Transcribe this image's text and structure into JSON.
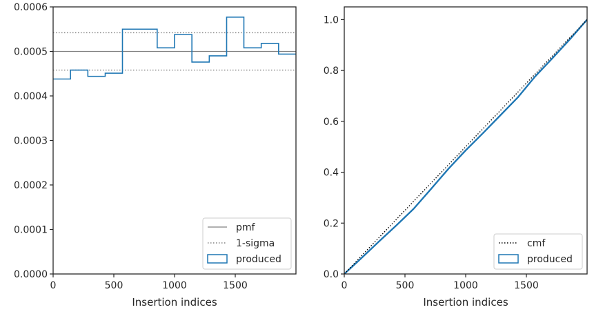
{
  "chart_data": [
    {
      "type": "line",
      "subtype": "step-histogram",
      "xlabel": "Insertion indices",
      "ylabel": "",
      "xlim": [
        0,
        2000
      ],
      "ylim": [
        0,
        0.0006
      ],
      "x_ticks": [
        0,
        500,
        1000,
        1500
      ],
      "x_tick_labels": [
        "0",
        "500",
        "1000",
        "1500"
      ],
      "y_ticks": [
        0,
        0.0001,
        0.0002,
        0.0003,
        0.0004,
        0.0005,
        0.0006
      ],
      "y_tick_labels": [
        "0.0000",
        "0.0001",
        "0.0002",
        "0.0003",
        "0.0004",
        "0.0005",
        "0.0006"
      ],
      "grid": false,
      "legend_position": "lower-right",
      "legend": [
        "pmf",
        "1-sigma",
        "produced"
      ],
      "series": [
        {
          "name": "pmf",
          "style": "solid",
          "color": "#808080",
          "y": 0.0005
        },
        {
          "name": "1-sigma",
          "style": "dotted",
          "color": "#808080",
          "y_values": [
            0.000458,
            0.000542
          ]
        },
        {
          "name": "produced",
          "style": "step",
          "color": "#1f77b4",
          "bin_edges": [
            0,
            143,
            286,
            429,
            571,
            714,
            857,
            1000,
            1143,
            1286,
            1429,
            1571,
            1714,
            1857,
            2000
          ],
          "values": [
            0.000438,
            0.000458,
            0.000444,
            0.000451,
            0.00055,
            0.00055,
            0.000508,
            0.000538,
            0.000476,
            0.00049,
            0.000577,
            0.000508,
            0.000518,
            0.000494
          ]
        }
      ]
    },
    {
      "type": "line",
      "xlabel": "Insertion indices",
      "ylabel": "",
      "xlim": [
        0,
        2000
      ],
      "ylim": [
        0,
        1.05
      ],
      "x_ticks": [
        0,
        500,
        1000,
        1500
      ],
      "x_tick_labels": [
        "0",
        "500",
        "1000",
        "1500"
      ],
      "y_ticks": [
        0,
        0.2,
        0.4,
        0.6,
        0.8,
        1.0
      ],
      "y_tick_labels": [
        "0.0",
        "0.2",
        "0.4",
        "0.6",
        "0.8",
        "1.0"
      ],
      "grid": false,
      "legend_position": "lower-right",
      "legend": [
        "cmf",
        "produced"
      ],
      "series": [
        {
          "name": "cmf",
          "style": "dotted",
          "color": "#000000",
          "x": [
            0,
            2000
          ],
          "y": [
            0,
            1.0
          ]
        },
        {
          "name": "produced",
          "style": "solid",
          "color": "#1f77b4",
          "x": [
            0,
            143,
            286,
            429,
            571,
            714,
            857,
            1000,
            1143,
            1286,
            1429,
            1571,
            1714,
            1857,
            2000
          ],
          "y": [
            0,
            0.063,
            0.128,
            0.191,
            0.256,
            0.334,
            0.413,
            0.486,
            0.554,
            0.624,
            0.694,
            0.776,
            0.848,
            0.922,
            1.0
          ]
        }
      ]
    }
  ]
}
